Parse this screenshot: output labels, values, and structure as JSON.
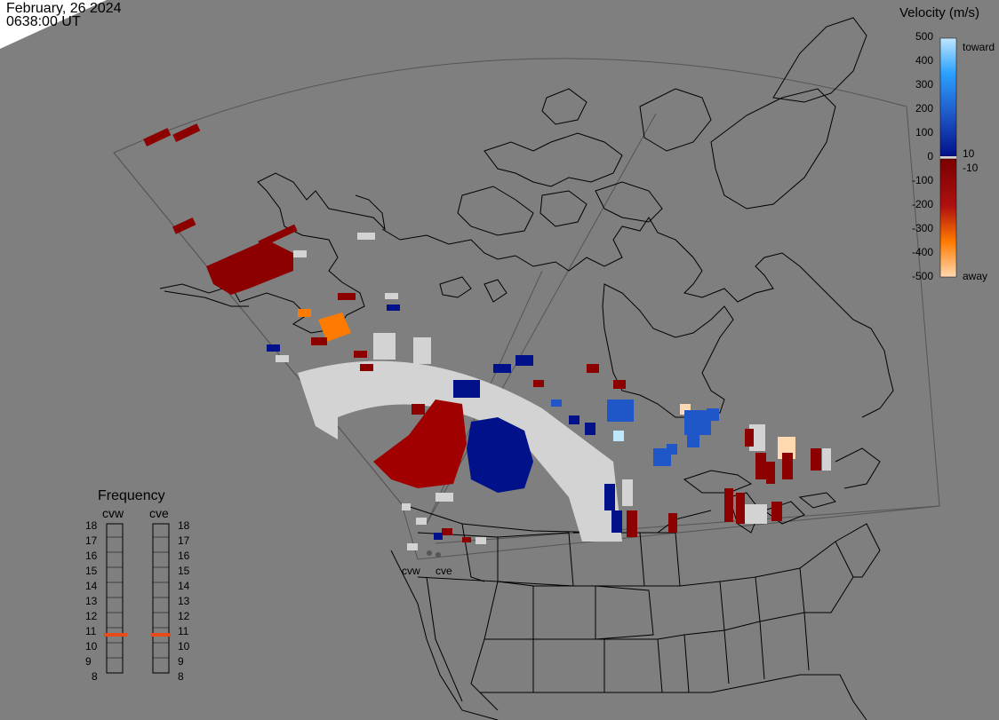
{
  "header": {
    "date": "February, 26 2024",
    "time": "0638:00 UT"
  },
  "colorbar": {
    "title": "Velocity (m/s)",
    "ticks": [
      "500",
      "400",
      "300",
      "200",
      "100",
      "0",
      "-100",
      "-200",
      "-300",
      "-400",
      "-500"
    ],
    "label_toward": "toward",
    "label_away": "away",
    "label_pos": "10",
    "label_neg": "-10",
    "colors_toward": [
      "#003cff",
      "#0070e8",
      "#2aa0ff",
      "#bfe6ff"
    ],
    "colors_away": [
      "#7a0000",
      "#d04a00",
      "#ff8a00",
      "#ffd9b0"
    ],
    "colors": {
      "dark_blue": "#00118a",
      "blue": "#1f57c8",
      "dark_red": "#8c0000",
      "red": "#b01010",
      "orange": "#ff7a00",
      "light_gray": "#d3d3d3",
      "ground_scatter": "#d0d0d0"
    }
  },
  "frequency": {
    "title": "Frequency",
    "radars": [
      "cvw",
      "cve"
    ],
    "scale": [
      "18",
      "17",
      "16",
      "15",
      "14",
      "13",
      "12",
      "11",
      "10",
      "9",
      "8"
    ],
    "current": {
      "cvw": 11,
      "cve": 11
    },
    "marker_color": "#e84a1a"
  },
  "sites": {
    "cvw": "cvw",
    "cve": "cve"
  },
  "map": {
    "background": "#7f7f7f",
    "coastline_color": "#000000",
    "fov_color": "#5a5a5a"
  }
}
